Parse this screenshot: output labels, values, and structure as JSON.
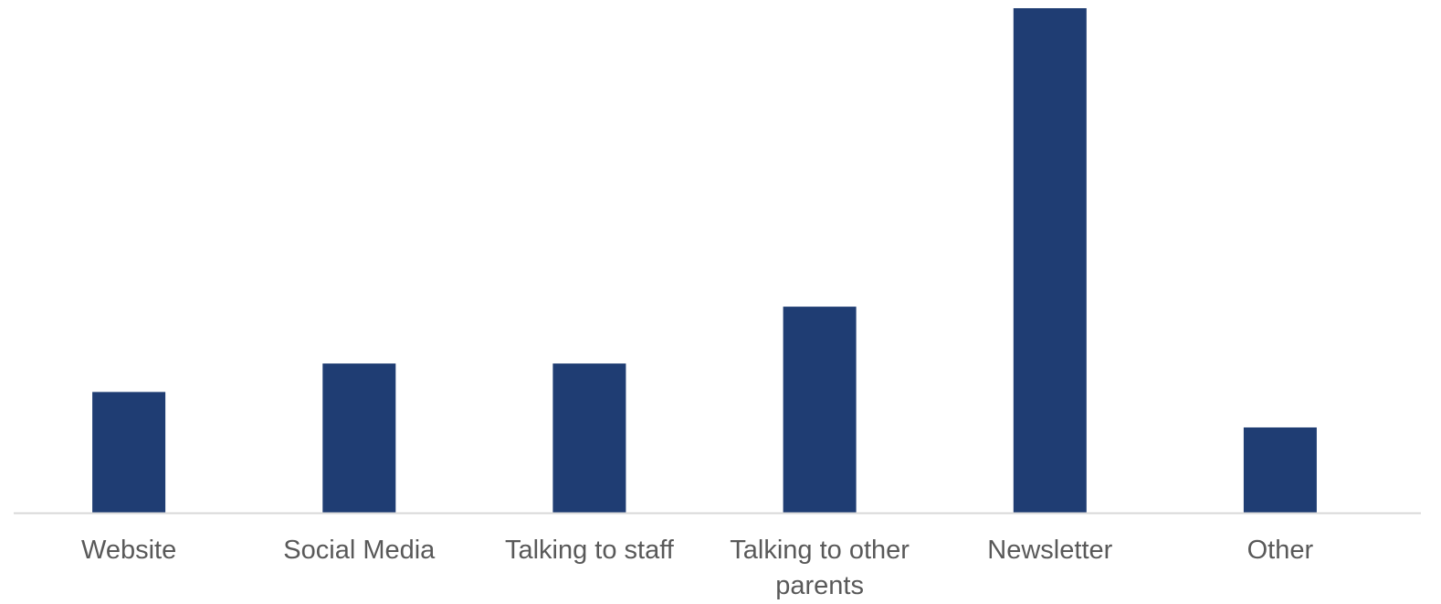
{
  "chart_data": {
    "type": "bar",
    "categories": [
      "Website",
      "Social Media",
      "Talking to staff",
      "Talking to other parents",
      "Newsletter",
      "Other"
    ],
    "category_lines": [
      [
        "Website"
      ],
      [
        "Social Media"
      ],
      [
        "Talking to staff"
      ],
      [
        "Talking to other",
        "parents"
      ],
      [
        "Newsletter"
      ],
      [
        "Other"
      ]
    ],
    "values": [
      17,
      21,
      21,
      29,
      71,
      12
    ],
    "ylim": [
      0,
      71
    ],
    "title": "",
    "xlabel": "",
    "ylabel": "",
    "grid": false,
    "legend": "none",
    "colors": {
      "bar": "#1F3D73",
      "axis": "#D9D9D9",
      "label": "#595959"
    }
  }
}
